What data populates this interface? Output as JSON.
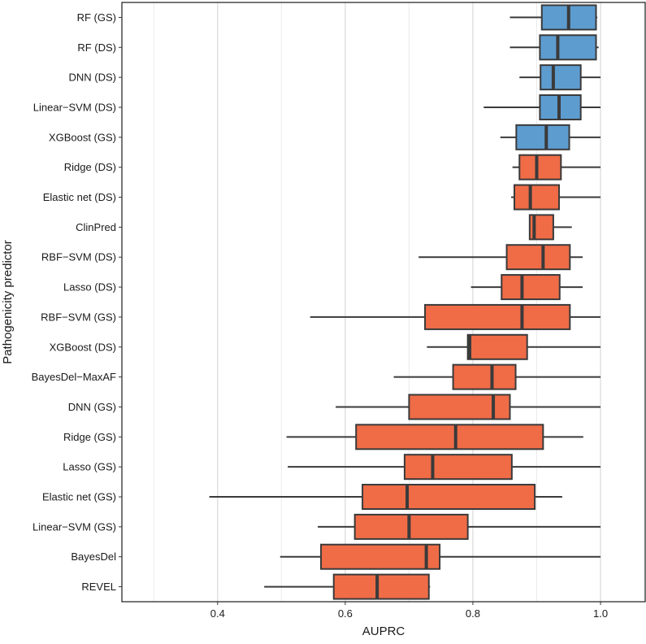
{
  "chart_data": {
    "type": "boxplot",
    "orientation": "horizontal",
    "xlabel": "AUPRC",
    "ylabel": "Pathogenicity predictor",
    "xlim": [
      0.25,
      1.07
    ],
    "xticks": [
      0.4,
      0.6,
      0.8,
      1.0
    ],
    "xtick_labels": [
      "0.4",
      "0.6",
      "0.8",
      "1.0"
    ],
    "grid": true,
    "colors": {
      "highlight": "#5d9ccf",
      "default": "#ef6c47",
      "outline": "#3a3a3a"
    },
    "categories": [
      "RF (GS)",
      "RF (DS)",
      "DNN (DS)",
      "Linear−SVM (DS)",
      "XGBoost (GS)",
      "Ridge (DS)",
      "Elastic net (DS)",
      "ClinPred",
      "RBF−SVM (DS)",
      "Lasso (DS)",
      "RBF−SVM (GS)",
      "XGBoost (DS)",
      "BayesDel−MaxAF",
      "DNN (GS)",
      "Ridge (GS)",
      "Lasso (GS)",
      "Elastic net (GS)",
      "Linear−SVM (GS)",
      "BayesDel",
      "REVEL"
    ],
    "boxes": [
      {
        "label": "RF (GS)",
        "min": 0.858,
        "q1": 0.908,
        "median": 0.95,
        "q3": 0.993,
        "max": 0.995,
        "group": "highlight"
      },
      {
        "label": "RF (DS)",
        "min": 0.858,
        "q1": 0.905,
        "median": 0.933,
        "q3": 0.993,
        "max": 0.997,
        "group": "highlight"
      },
      {
        "label": "DNN (DS)",
        "min": 0.873,
        "q1": 0.906,
        "median": 0.926,
        "q3": 0.969,
        "max": 1.0,
        "group": "highlight"
      },
      {
        "label": "Linear−SVM (DS)",
        "min": 0.817,
        "q1": 0.905,
        "median": 0.935,
        "q3": 0.969,
        "max": 1.0,
        "group": "highlight"
      },
      {
        "label": "XGBoost (GS)",
        "min": 0.843,
        "q1": 0.868,
        "median": 0.915,
        "q3": 0.951,
        "max": 1.0,
        "group": "highlight"
      },
      {
        "label": "Ridge (DS)",
        "min": 0.862,
        "q1": 0.873,
        "median": 0.9,
        "q3": 0.938,
        "max": 1.0,
        "group": "default"
      },
      {
        "label": "Elastic net (DS)",
        "min": 0.86,
        "q1": 0.865,
        "median": 0.89,
        "q3": 0.935,
        "max": 1.0,
        "group": "default"
      },
      {
        "label": "ClinPred",
        "min": 0.888,
        "q1": 0.889,
        "median": 0.896,
        "q3": 0.926,
        "max": 0.955,
        "group": "default"
      },
      {
        "label": "RBF−SVM (DS)",
        "min": 0.715,
        "q1": 0.853,
        "median": 0.91,
        "q3": 0.952,
        "max": 0.972,
        "group": "default"
      },
      {
        "label": "Lasso (DS)",
        "min": 0.797,
        "q1": 0.845,
        "median": 0.877,
        "q3": 0.936,
        "max": 0.972,
        "group": "default"
      },
      {
        "label": "RBF−SVM (GS)",
        "min": 0.545,
        "q1": 0.725,
        "median": 0.877,
        "q3": 0.952,
        "max": 1.0,
        "group": "default"
      },
      {
        "label": "XGBoost (DS)",
        "min": 0.728,
        "q1": 0.792,
        "median": 0.795,
        "q3": 0.885,
        "max": 1.0,
        "group": "default"
      },
      {
        "label": "BayesDel−MaxAF",
        "min": 0.676,
        "q1": 0.769,
        "median": 0.83,
        "q3": 0.867,
        "max": 1.0,
        "group": "default"
      },
      {
        "label": "DNN (GS)",
        "min": 0.585,
        "q1": 0.7,
        "median": 0.832,
        "q3": 0.858,
        "max": 1.0,
        "group": "default"
      },
      {
        "label": "Ridge (GS)",
        "min": 0.508,
        "q1": 0.617,
        "median": 0.773,
        "q3": 0.91,
        "max": 0.973,
        "group": "default"
      },
      {
        "label": "Lasso (GS)",
        "min": 0.51,
        "q1": 0.693,
        "median": 0.737,
        "q3": 0.861,
        "max": 1.0,
        "group": "default"
      },
      {
        "label": "Elastic net (GS)",
        "min": 0.387,
        "q1": 0.627,
        "median": 0.697,
        "q3": 0.897,
        "max": 0.94,
        "group": "default"
      },
      {
        "label": "Linear−SVM (GS)",
        "min": 0.557,
        "q1": 0.615,
        "median": 0.7,
        "q3": 0.792,
        "max": 1.0,
        "group": "default"
      },
      {
        "label": "BayesDel",
        "min": 0.498,
        "q1": 0.562,
        "median": 0.727,
        "q3": 0.748,
        "max": 1.0,
        "group": "default"
      },
      {
        "label": "REVEL",
        "min": 0.473,
        "q1": 0.582,
        "median": 0.65,
        "q3": 0.731,
        "max": 0.733,
        "group": "default"
      }
    ]
  }
}
